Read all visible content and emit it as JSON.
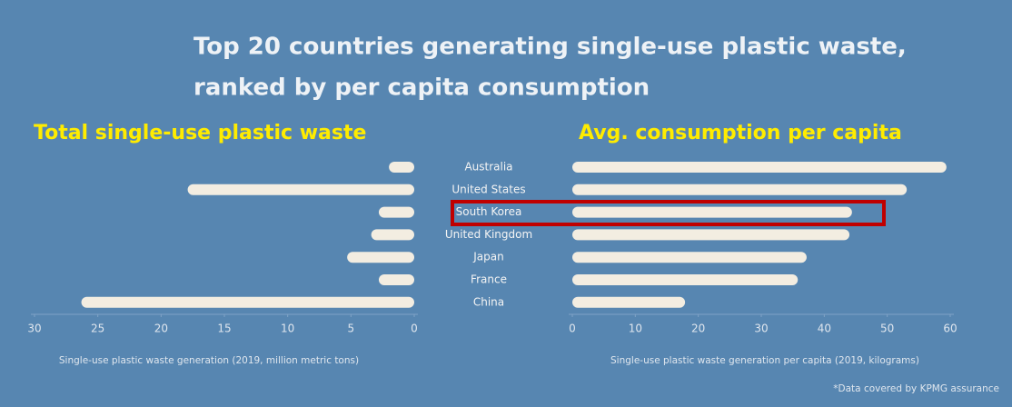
{
  "title_lines": [
    "Top 20 countries generating single-use plastic waste,",
    "ranked by per capita consumption"
  ],
  "chart_data": [
    {
      "type": "hbar",
      "heading": "Total single-use plastic waste",
      "categories": [
        "Australia",
        "United States",
        "South Korea",
        "United Kingdom",
        "Japan",
        "France",
        "China"
      ],
      "values": [
        2.0,
        17.9,
        2.8,
        3.4,
        5.3,
        2.8,
        26.3
      ],
      "color": "#f3ede1",
      "xlim": [
        30,
        0
      ],
      "xticks": [
        30,
        25,
        20,
        15,
        10,
        5,
        0
      ],
      "xlabel": "Single-use plastic waste generation (2019, million metric tons)"
    },
    {
      "type": "hbar",
      "heading": "Avg. consumption per capita",
      "values": [
        59.4,
        53.1,
        44.4,
        44,
        37.2,
        35.8,
        17.9
      ],
      "color": "#f3ede1",
      "xlim": [
        0,
        60
      ],
      "xticks": [
        0,
        10,
        20,
        30,
        40,
        50,
        60
      ],
      "xlabel": "Single-use plastic waste generation per capita (2019, kilograms)"
    }
  ],
  "footnote": "*Data covered by KPMG assurance"
}
